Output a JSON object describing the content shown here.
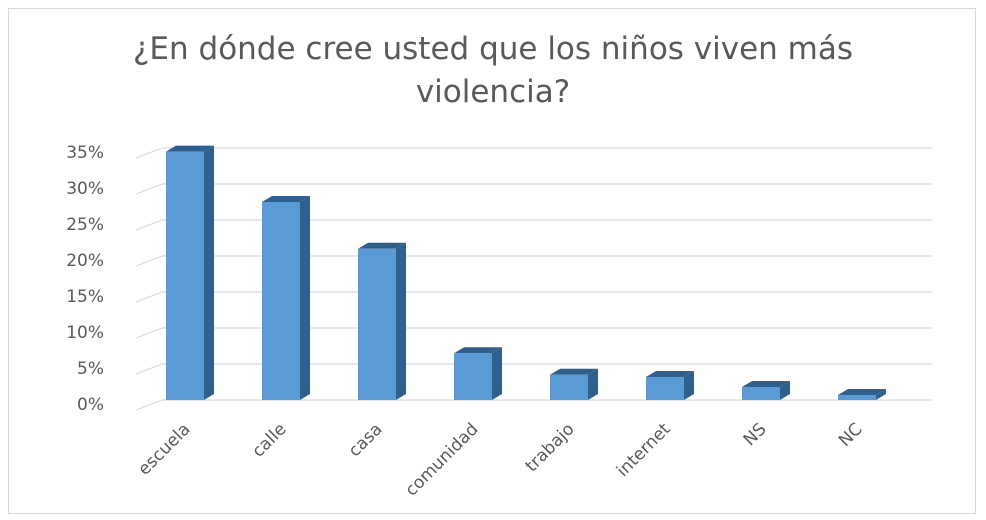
{
  "chart_data": {
    "type": "bar",
    "title": "¿En dónde cree usted que los niños viven más violencia?",
    "title_lines": [
      "¿En dónde cree usted que los niños viven más",
      "violencia?"
    ],
    "categories": [
      "escuela",
      "calle",
      "casa",
      "comunidad",
      "trabajo",
      "internet",
      "NS",
      "NC"
    ],
    "values": [
      34.5,
      27.5,
      21,
      6.5,
      3.5,
      3.2,
      1.8,
      0.7
    ],
    "ylim": [
      0,
      35
    ],
    "yticks": [
      0,
      5,
      10,
      15,
      20,
      25,
      30,
      35
    ],
    "ytick_labels": [
      "0%",
      "5%",
      "10%",
      "15%",
      "20%",
      "25%",
      "30%",
      "35%"
    ],
    "xlabel": "",
    "ylabel": "",
    "grid": true,
    "legend": "none",
    "style": "3d-column",
    "colors": {
      "bar_front": "#5b9bd5",
      "bar_side": "#2e5f8e",
      "bar_top": "#2f5f8d",
      "grid": "#d9d9d9",
      "text": "#595959"
    }
  }
}
